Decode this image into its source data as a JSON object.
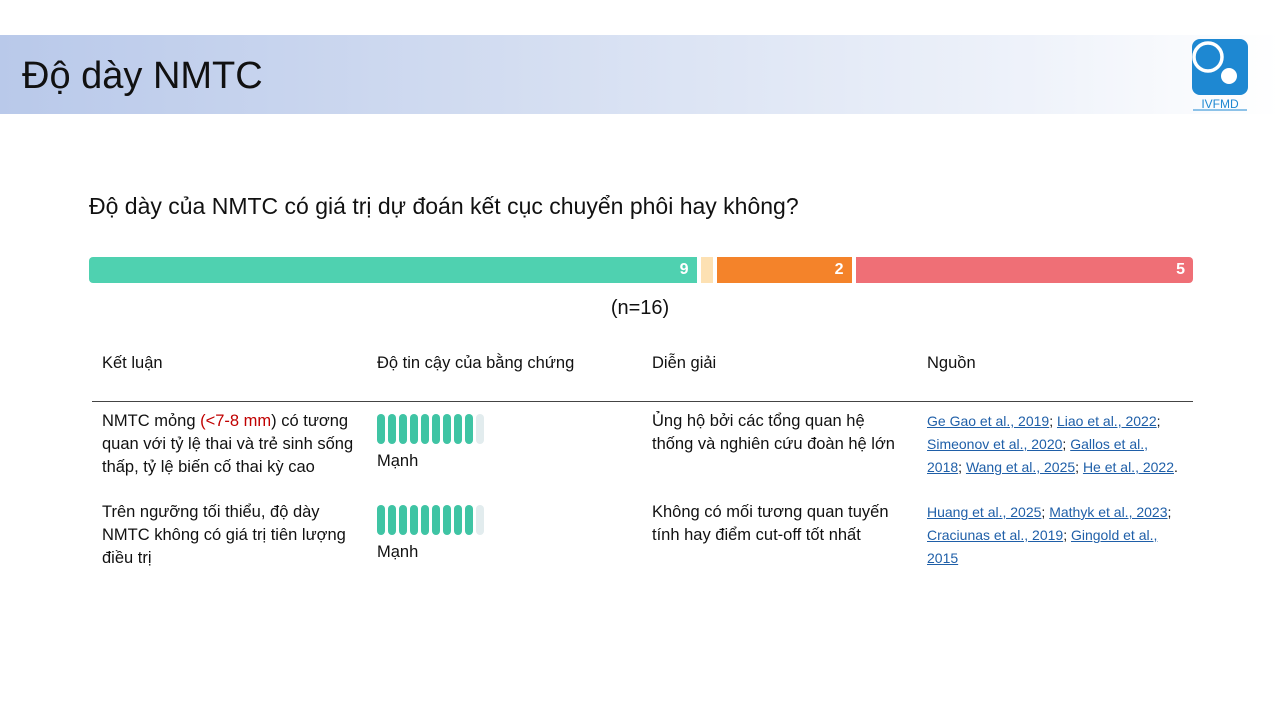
{
  "header": {
    "title": "Độ dày NMTC",
    "logo_text": "IVFMD"
  },
  "question": "Độ dày của NMTC có giá trị dự đoán kết cục chuyển phôi hay không?",
  "vote_bar": {
    "segments": [
      {
        "value": 9,
        "color": "#4fd1b0"
      },
      {
        "value": 0,
        "color": "#fde1b3"
      },
      {
        "value": 2,
        "color": "#f4832a"
      },
      {
        "value": 5,
        "color": "#ef6f76"
      }
    ],
    "n_label": "(n=16)"
  },
  "table": {
    "headers": [
      "Kết luận",
      "Độ tin cậy của bằng chứng",
      "Diễn giải",
      "Nguồn"
    ],
    "rows": [
      {
        "conclusion_before": "NMTC mỏng ",
        "conclusion_highlight": "(<7-8 mm",
        "conclusion_after": ") có tương quan với tỷ lệ thai và trẻ sinh sống thấp, tỷ lệ biến cố thai kỳ cao",
        "evidence_level": 9,
        "evidence_max": 10,
        "evidence_label": "Mạnh",
        "interpretation": "Ủng hộ bởi các tổng quan hệ thống và nghiên cứu đoàn hệ lớn",
        "sources": [
          "Ge Gao et al., 2019",
          "Liao et al., 2022",
          "Simeonov  et al., 2020",
          "Gallos et al., 2018",
          "Wang et al., 2025",
          "He et al., 2022"
        ],
        "sources_end": "."
      },
      {
        "conclusion_before": "Trên ngưỡng tối thiểu, độ dày NMTC không có giá trị tiên lượng điều trị",
        "conclusion_highlight": "",
        "conclusion_after": "",
        "evidence_level": 9,
        "evidence_max": 10,
        "evidence_label": "Mạnh",
        "interpretation": "Không có mối tương quan tuyến tính hay điểm cut-off tốt nhất",
        "sources": [
          "Huang et al., 2025",
          "Mathyk et al., 2023",
          "Craciunas et al., 2019",
          "Gingold et al., 2015"
        ],
        "sources_end": ""
      }
    ]
  }
}
